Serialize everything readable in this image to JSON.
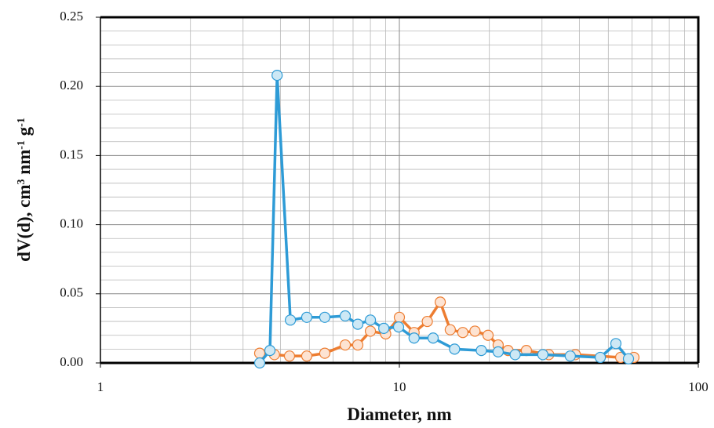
{
  "chart_data": {
    "type": "line",
    "x_label": "Diameter, nm",
    "y_label": [
      "dV(d), cm",
      "3",
      " nm",
      "-1",
      " g",
      "-1"
    ],
    "x_scale": "log",
    "xlim": [
      1,
      100
    ],
    "xticks": [
      1,
      10,
      100
    ],
    "ylim": [
      0,
      0.25
    ],
    "yticks": [
      {
        "value": 0,
        "label": "0.00"
      },
      0.05,
      {
        "value": 0.1,
        "label": "0.10"
      },
      0.15,
      {
        "value": 0.2,
        "label": "0.20"
      },
      0.25
    ],
    "grid": true,
    "minor_grid": true,
    "series": [
      {
        "color": "#ed7d31",
        "marker_fill": "#fde3d2",
        "x": [
          3.41,
          3.82,
          4.29,
          4.9,
          5.63,
          6.59,
          7.26,
          8.0,
          9.0,
          10.0,
          11.2,
          12.4,
          13.7,
          14.8,
          16.3,
          17.9,
          19.8,
          21.4,
          23.1,
          26.6,
          31.6,
          38.8,
          55.0,
          60.9
        ],
        "values": [
          0.007,
          0.006,
          0.005,
          0.005,
          0.007,
          0.013,
          0.013,
          0.023,
          0.021,
          0.033,
          0.022,
          0.03,
          0.044,
          0.024,
          0.022,
          0.023,
          0.02,
          0.013,
          0.009,
          0.009,
          0.006,
          0.006,
          0.004,
          0.004
        ]
      },
      {
        "color": "#2e9bd6",
        "marker_fill": "#cde8f5",
        "x": [
          3.41,
          3.69,
          3.9,
          4.32,
          4.9,
          5.63,
          6.59,
          7.26,
          8.0,
          8.87,
          9.94,
          11.2,
          12.97,
          15.3,
          18.8,
          21.4,
          24.4,
          30.2,
          37.3,
          47.0,
          53.0,
          58.4
        ],
        "values": [
          0.0,
          0.009,
          0.208,
          0.031,
          0.033,
          0.033,
          0.034,
          0.028,
          0.031,
          0.025,
          0.026,
          0.018,
          0.018,
          0.01,
          0.009,
          0.008,
          0.006,
          0.006,
          0.005,
          0.004,
          0.014,
          0.003
        ]
      }
    ]
  }
}
